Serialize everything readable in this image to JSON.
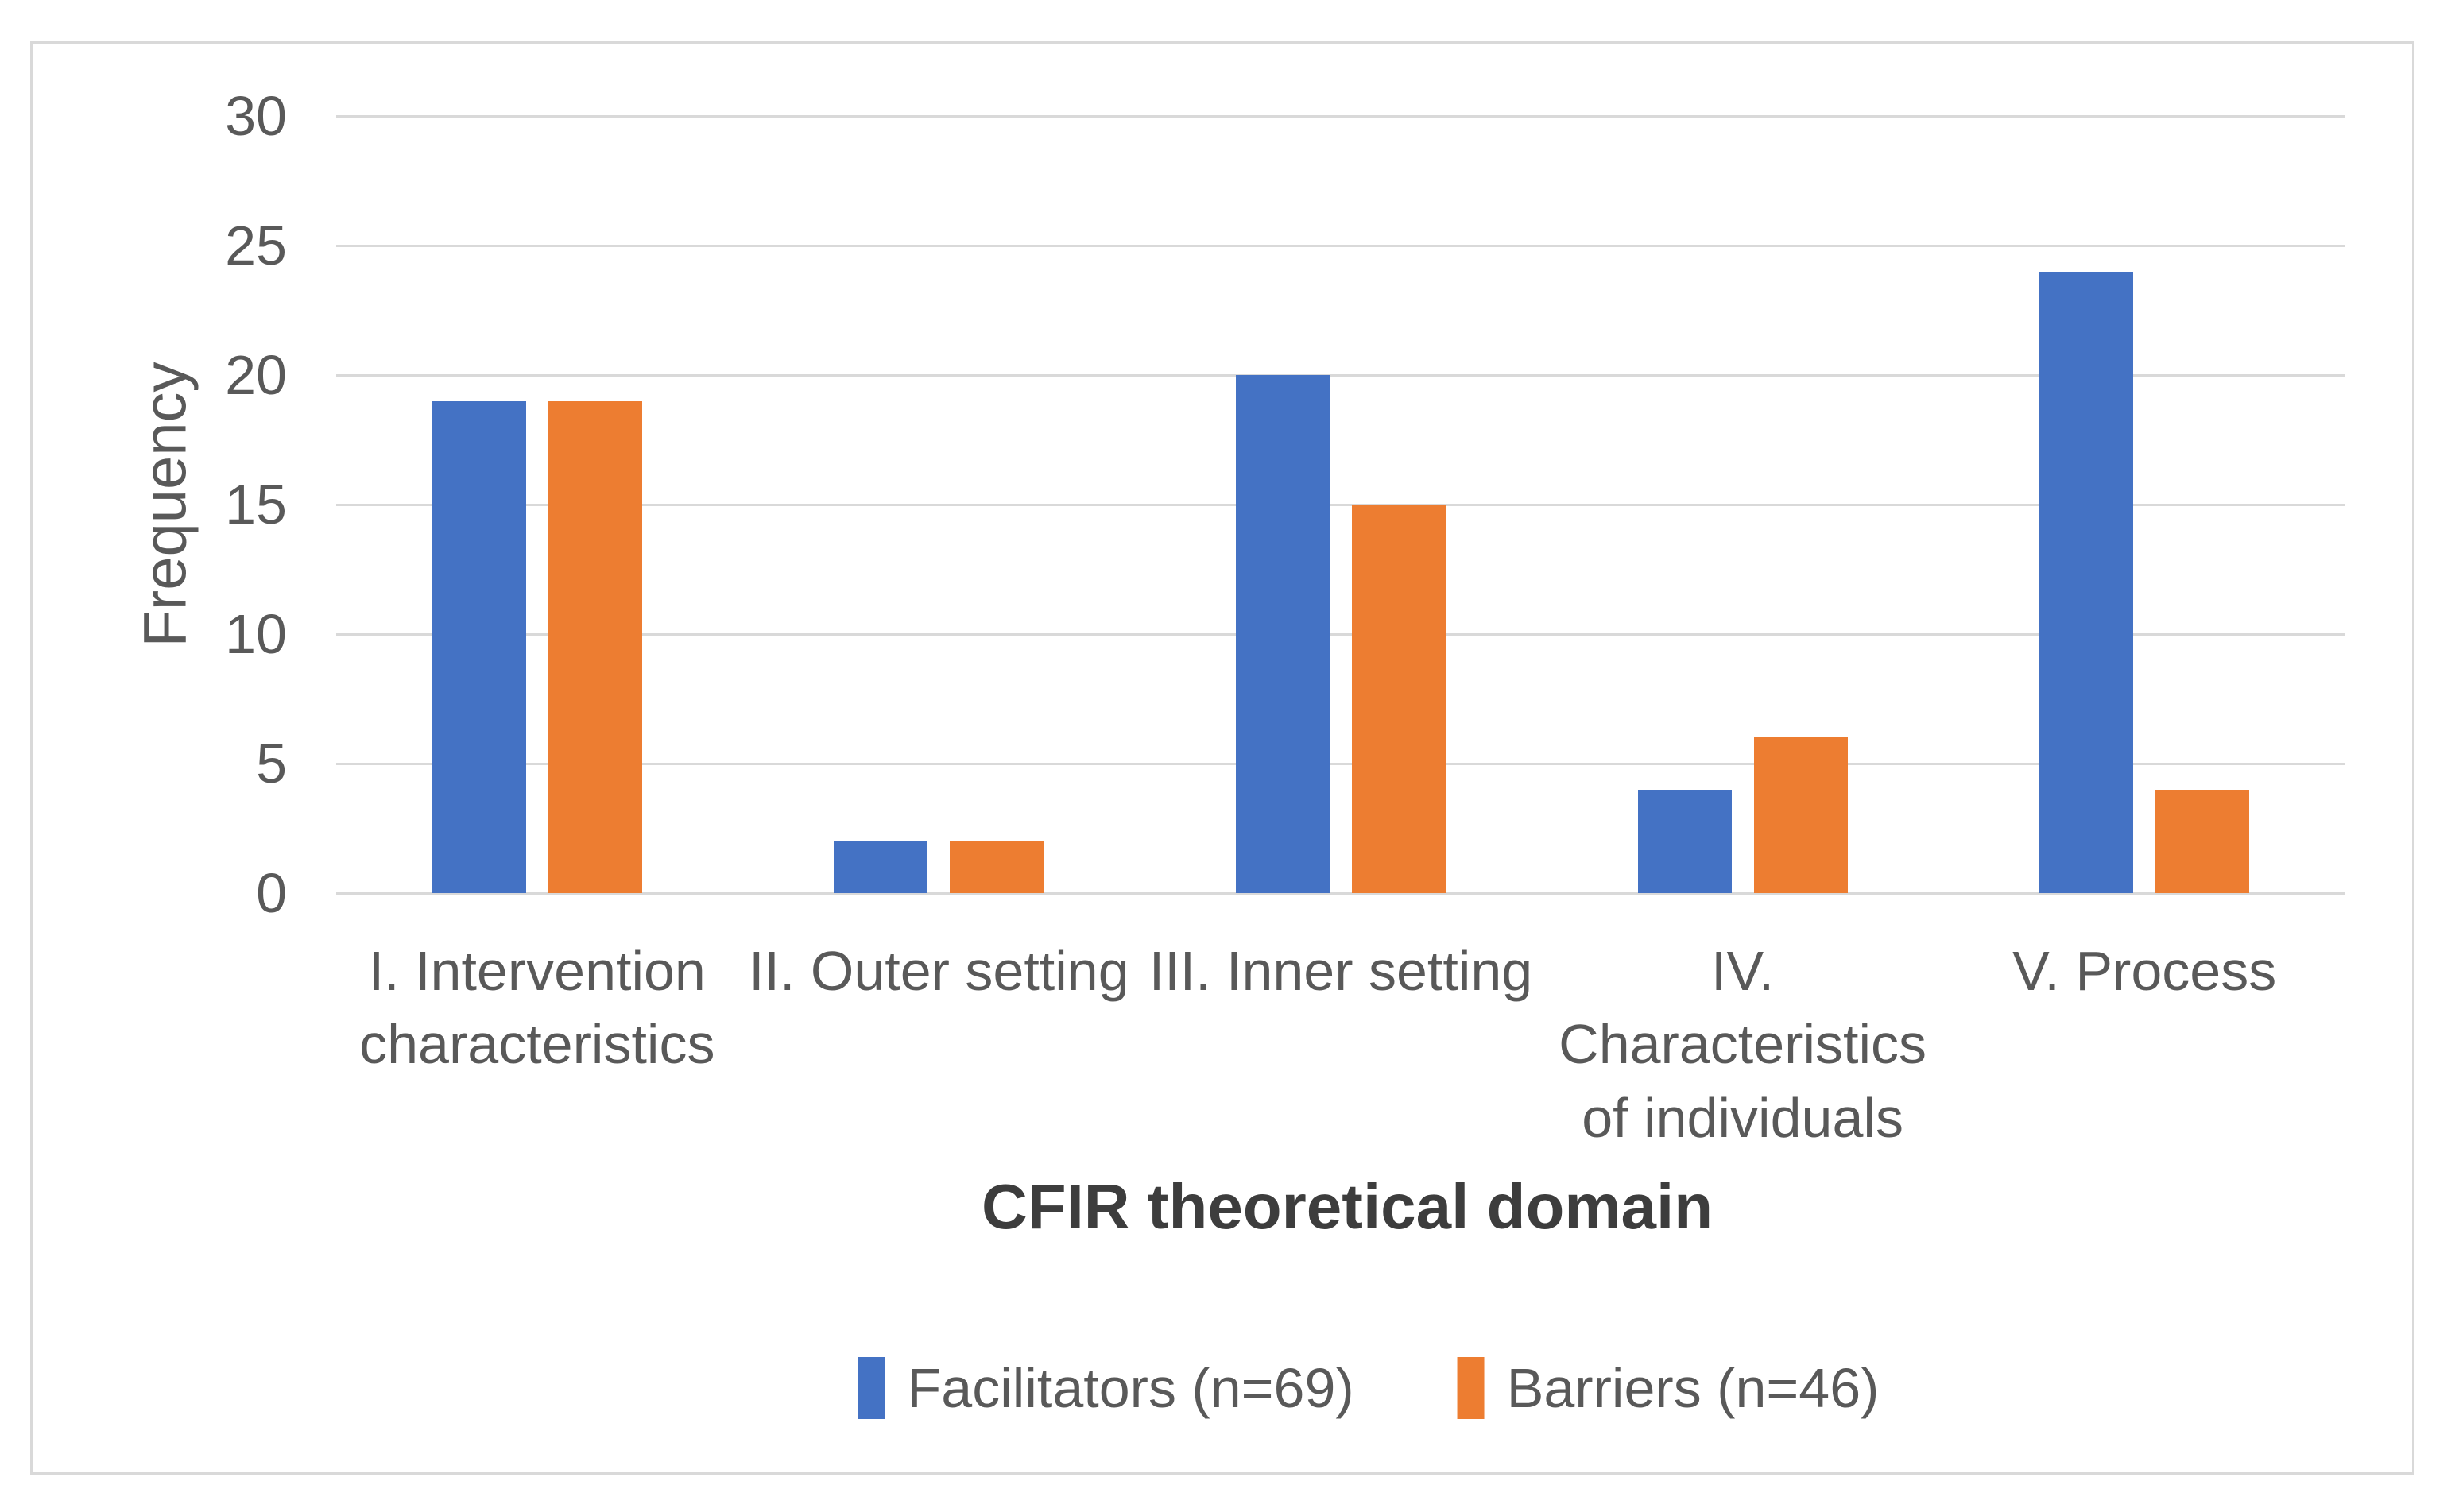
{
  "figure": {
    "background_color": "#ffffff",
    "panel_border_color": "#d9d9d9",
    "gridline_color": "#d9d9d9",
    "text_color": "#595959",
    "axis_title_color": "#3d3d3d"
  },
  "chart_data": {
    "type": "bar",
    "title": "",
    "xlabel": "CFIR theoretical domain",
    "ylabel": "Frequency",
    "categories": [
      "I. Intervention characteristics",
      "II. Outer setting",
      "III. Inner setting",
      "IV. Characteristics of individuals",
      "V. Process"
    ],
    "categories_display": [
      "I. Intervention\ncharacteristics",
      "II. Outer setting",
      "III. Inner setting",
      "IV.\nCharacteristics\nof individuals",
      "V. Process"
    ],
    "series": [
      {
        "name": "Facilitators (n=69)",
        "color": "#4472C4",
        "values": [
          19,
          2,
          20,
          4,
          24
        ]
      },
      {
        "name": "Barriers (n=46)",
        "color": "#ED7D31",
        "values": [
          19,
          2,
          15,
          6,
          4
        ]
      }
    ],
    "ylim": [
      0,
      30
    ],
    "yticks": [
      0,
      5,
      10,
      15,
      20,
      25,
      30
    ],
    "grid": "horizontal",
    "legend_position": "bottom"
  }
}
